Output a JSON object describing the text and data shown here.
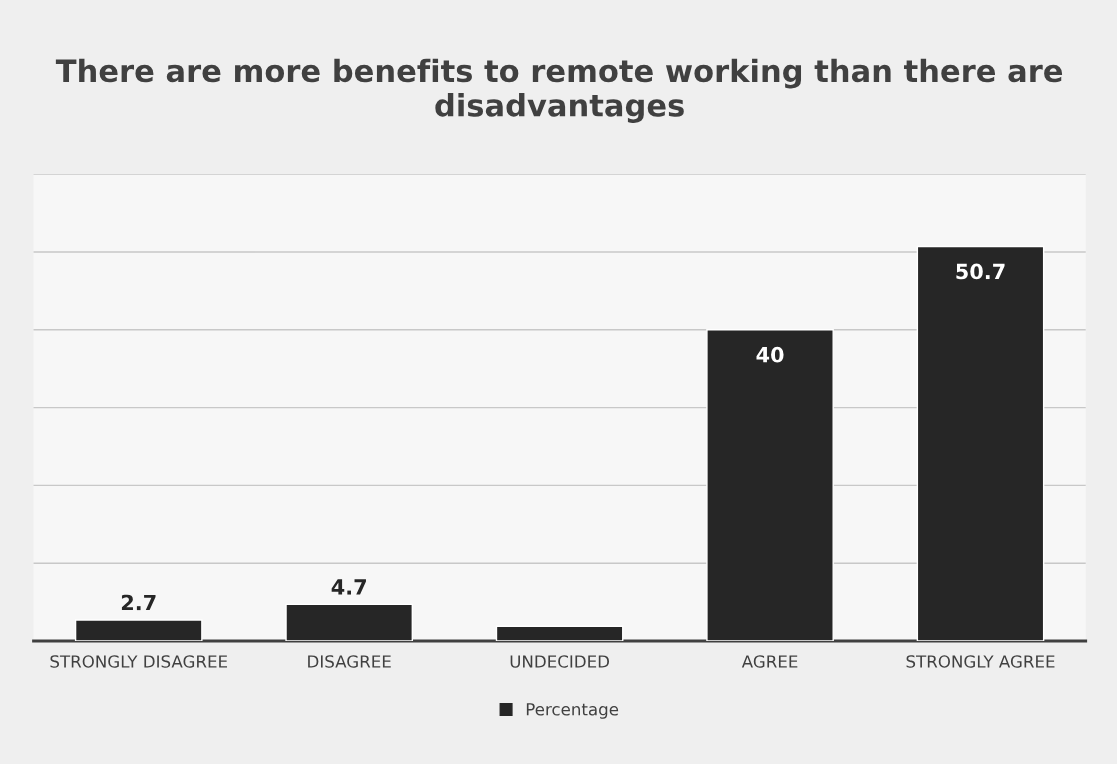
{
  "chart_data": {
    "type": "bar",
    "title": "There are more benefits to remote working than there are disadvantages",
    "categories": [
      "STRONGLY DISAGREE",
      "DISAGREE",
      "UNDECIDED",
      "AGREE",
      "STRONGLY AGREE"
    ],
    "series": [
      {
        "name": "Percentage",
        "color": "#262626",
        "values": [
          2.7,
          4.7,
          1.9,
          40,
          50.7
        ],
        "value_labels": [
          "2.7",
          "4.7",
          null,
          "40",
          "50.7"
        ]
      }
    ],
    "ylim": [
      0,
      60
    ],
    "yticks": [
      {
        "value": 0,
        "label": null
      },
      {
        "value": 10,
        "label": null
      },
      {
        "value": 20,
        "label": null
      },
      {
        "value": 30,
        "label": null
      },
      {
        "value": 40,
        "label": null
      },
      {
        "value": 50,
        "label": null
      },
      {
        "value": 60,
        "label": null
      }
    ],
    "tick_labels": "x",
    "grid": "y",
    "legend": "bottom"
  }
}
